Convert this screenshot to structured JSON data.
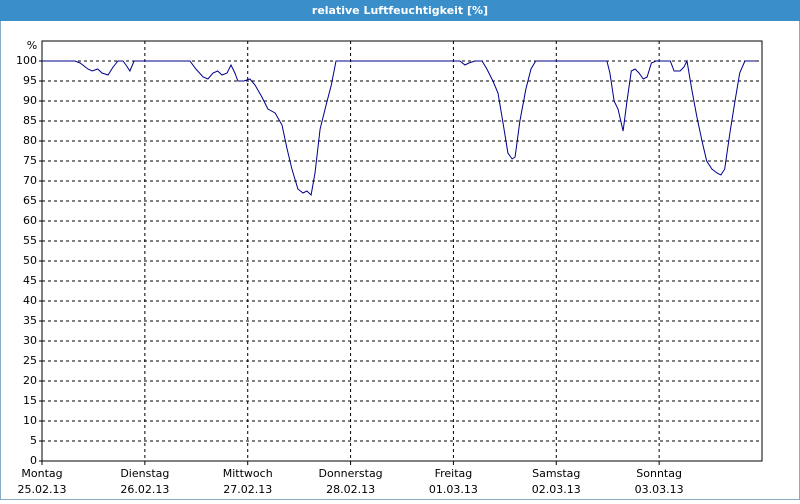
{
  "window_title": "relative Luftfeuchtigkeit [%]",
  "chart_data": {
    "type": "line",
    "y_unit": "%",
    "x": [
      0,
      7.7,
      8.9,
      10.7,
      11.7,
      13,
      14,
      15.4,
      16.6,
      17.7,
      18.9,
      19.6,
      20.5,
      21.5,
      34.5,
      35.9,
      37.6,
      38.7,
      39.9,
      41,
      42,
      43.2,
      44.1,
      45,
      45.7,
      47.1,
      48.5,
      49.7,
      51.3,
      52.7,
      54.4,
      56,
      57.2,
      58.3,
      59.7,
      60.9,
      61.8,
      62.8,
      63.7,
      64.9,
      66.3,
      67.5,
      68.6,
      97.5,
      98.7,
      99.6,
      101,
      102.7,
      103.8,
      105.2,
      106.4,
      107.5,
      108.7,
      109.7,
      110.4,
      111.5,
      112.9,
      114.1,
      115.2,
      131.8,
      132.5,
      133.5,
      134.4,
      135.6,
      136.5,
      137.5,
      138.4,
      139.3,
      140.3,
      141.2,
      142.2,
      143.3,
      146.6,
      147.5,
      148.9,
      149.8,
      150.5,
      151.6,
      152.8,
      154,
      155.1,
      156.3,
      157.5,
      158.4,
      159.3,
      160.5,
      161.7,
      162.8,
      164,
      166.6
    ],
    "series": [
      {
        "name": "relative Luftfeuchtigkeit",
        "color": "#00008b",
        "values": [
          100,
          100,
          99.5,
          98,
          97.5,
          98,
          97,
          96.5,
          98.5,
          100,
          100,
          99,
          97.5,
          100,
          100,
          98,
          96,
          95.5,
          97,
          97.5,
          96.5,
          97,
          99,
          97,
          95,
          95,
          95.5,
          94,
          91,
          88,
          87,
          84,
          78,
          73,
          68,
          67,
          67.5,
          66.5,
          72,
          83,
          89,
          94,
          100,
          100,
          99,
          99.5,
          100,
          100,
          98,
          95,
          92,
          85,
          77,
          75.5,
          76,
          85,
          93,
          98,
          100,
          100,
          97,
          90,
          88,
          82.5,
          90,
          97.5,
          98,
          97,
          95.5,
          96,
          99.5,
          100,
          100,
          97.5,
          97.5,
          98.5,
          100,
          93,
          86,
          80,
          75,
          73,
          72,
          71.5,
          73,
          82,
          90,
          97,
          100,
          100
        ]
      }
    ],
    "xlim": [
      0,
      168
    ],
    "xticks": [
      {
        "value": 0,
        "label": "Montag"
      },
      {
        "value": 24,
        "label": "Dienstag"
      },
      {
        "value": 48,
        "label": "Mittwoch"
      },
      {
        "value": 72,
        "label": "Donnerstag"
      },
      {
        "value": 96,
        "label": "Freitag"
      },
      {
        "value": 120,
        "label": "Samstag"
      },
      {
        "value": 144,
        "label": "Sonntag"
      }
    ],
    "xtick_dates": [
      "25.02.13",
      "26.02.13",
      "27.02.13",
      "28.02.13",
      "01.03.13",
      "02.03.13",
      "03.03.13"
    ],
    "ylim": [
      0,
      105
    ],
    "yticks": [
      0,
      5,
      10,
      15,
      20,
      25,
      30,
      35,
      40,
      45,
      50,
      55,
      60,
      65,
      70,
      75,
      80,
      85,
      90,
      95,
      100
    ],
    "grid": true
  }
}
